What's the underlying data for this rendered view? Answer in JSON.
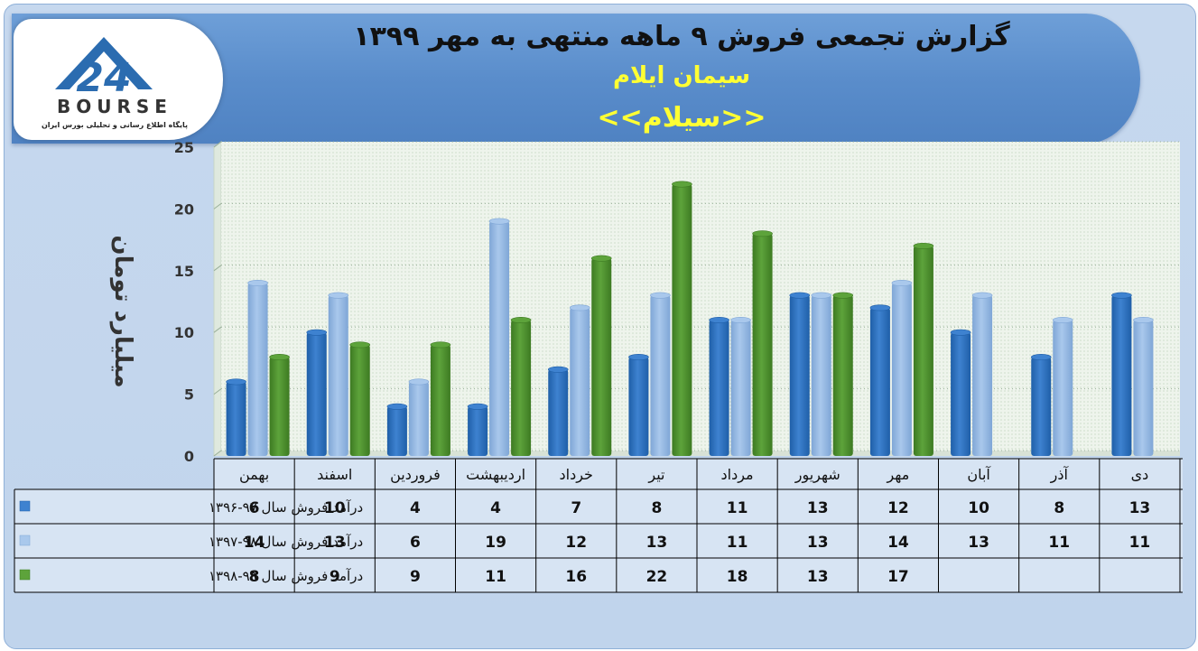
{
  "logo": {
    "mark": "24",
    "wordmark": "BOURSE",
    "tagline": "پایگاه اطلاع رسانی و تحلیلی بورس ایران"
  },
  "header": {
    "title": "گزارش تجمعی فروش ۹ ماهه منتهی به مهر ۱۳۹۹",
    "company": "سیمان ایلام",
    "symbol": "<<سیلام>>"
  },
  "colors": {
    "series1": "#3e82d0",
    "series2": "#a9c8ec",
    "series3": "#5da33b",
    "header": "#5b8ecd",
    "title_sub": "#ffff33"
  },
  "chart_data": {
    "type": "bar",
    "ylabel": "میلیارد تومان",
    "ylim": [
      0,
      25
    ],
    "yticks": [
      0,
      5,
      10,
      15,
      20,
      25
    ],
    "grid": true,
    "categories": [
      "بهمن",
      "اسفند",
      "فروردین",
      "اردیبهشت",
      "خرداد",
      "تیر",
      "مرداد",
      "شهریور",
      "مهر",
      "آبان",
      "آذر",
      "دی"
    ],
    "series": [
      {
        "name": "درآمد فروش سال ۹۷-۱۳۹۶",
        "values": [
          6,
          10,
          4,
          4,
          7,
          8,
          11,
          13,
          12,
          10,
          8,
          13
        ]
      },
      {
        "name": "درآمد فروش سال ۹۸-۱۳۹۷",
        "values": [
          14,
          13,
          6,
          19,
          12,
          13,
          11,
          13,
          14,
          13,
          11,
          11
        ]
      },
      {
        "name": "درآمد فروش سال ۹۹-۱۳۹۸",
        "values": [
          8,
          9,
          9,
          11,
          16,
          22,
          18,
          13,
          17,
          null,
          null,
          null
        ]
      }
    ]
  }
}
